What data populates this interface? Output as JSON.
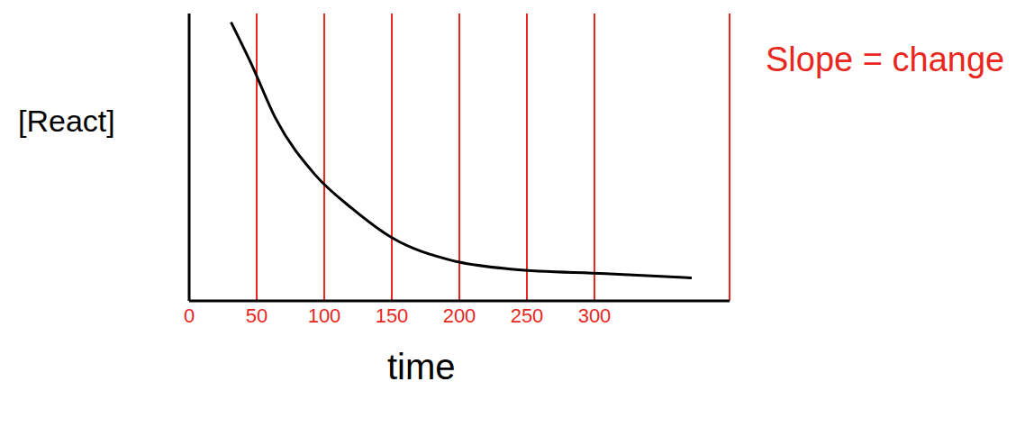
{
  "chart_data": {
    "type": "line",
    "x_label": "time",
    "y_label": "[React]",
    "annotation": "Slope = change",
    "x": [
      31,
      46,
      64,
      93,
      121,
      150,
      195,
      240,
      308,
      372
    ],
    "values": [
      9.7,
      8.25,
      6.35,
      4.4,
      3.2,
      2.2,
      1.4,
      1.1,
      0.95,
      0.8
    ],
    "color": "#000000",
    "xlim": [
      0,
      400
    ],
    "xticks": [
      0,
      50,
      100,
      150,
      200,
      250,
      300
    ],
    "ylim": [
      0,
      10
    ],
    "grid": "x",
    "tick_labels": "x",
    "marker": "none"
  }
}
